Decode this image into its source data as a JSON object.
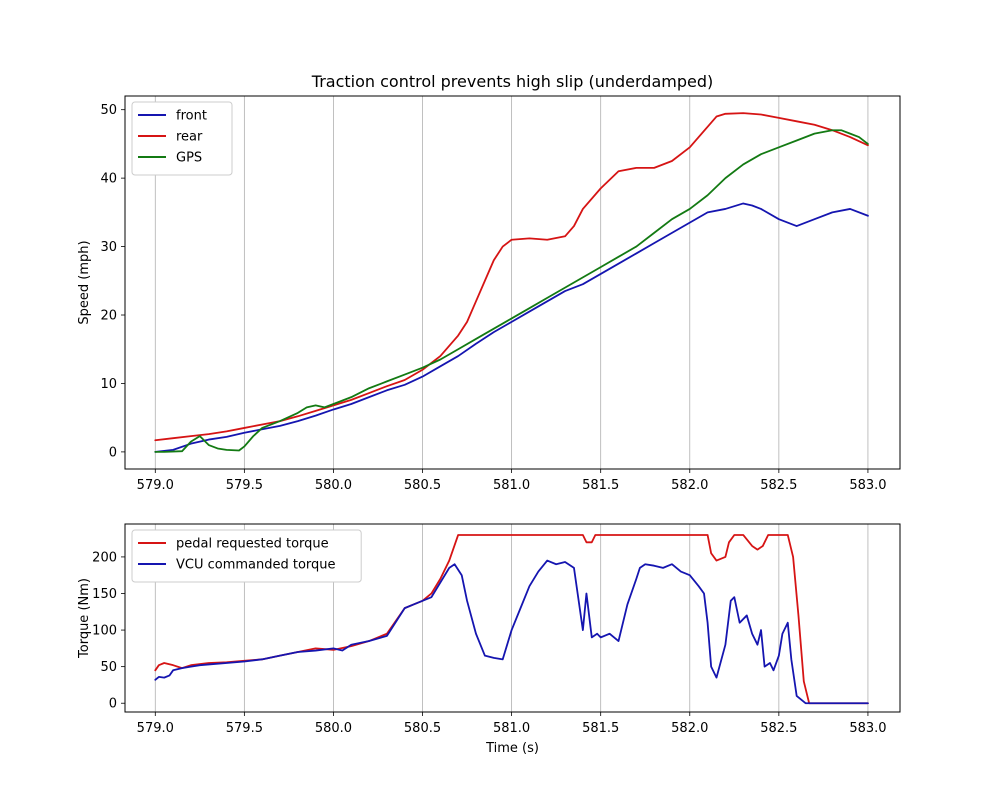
{
  "chart_data": [
    {
      "type": "line",
      "title": "Traction control prevents high slip (underdamped)",
      "xlabel": "",
      "ylabel": "Speed (mph)",
      "xlim": [
        578.83,
        583.18
      ],
      "ylim": [
        -2.5,
        52
      ],
      "xticks": [
        579.0,
        579.5,
        580.0,
        580.5,
        581.0,
        581.5,
        582.0,
        582.5,
        583.0
      ],
      "xtick_labels": [
        "579.0",
        "579.5",
        "580.0",
        "580.5",
        "581.0",
        "581.5",
        "582.0",
        "582.5",
        "583.0"
      ],
      "yticks": [
        0,
        10,
        20,
        30,
        40,
        50
      ],
      "ytick_labels": [
        "0",
        "10",
        "20",
        "30",
        "40",
        "50"
      ],
      "grid": "x",
      "legend": "upper-left",
      "series": [
        {
          "name": "front",
          "color": "#1515b0",
          "x": [
            579.0,
            579.1,
            579.2,
            579.3,
            579.4,
            579.5,
            579.6,
            579.7,
            579.8,
            579.9,
            580.0,
            580.1,
            580.2,
            580.3,
            580.4,
            580.5,
            580.6,
            580.7,
            580.8,
            580.9,
            581.0,
            581.1,
            581.2,
            581.3,
            581.4,
            581.5,
            581.6,
            581.7,
            581.8,
            581.9,
            582.0,
            582.1,
            582.2,
            582.3,
            582.35,
            582.4,
            582.5,
            582.6,
            582.7,
            582.8,
            582.9,
            583.0
          ],
          "values": [
            0,
            0.3,
            1.2,
            1.8,
            2.2,
            2.8,
            3.3,
            3.8,
            4.5,
            5.3,
            6.2,
            7.0,
            8.0,
            9.0,
            9.8,
            11.0,
            12.5,
            14.0,
            15.8,
            17.5,
            19.0,
            20.5,
            22.0,
            23.5,
            24.5,
            26.0,
            27.5,
            29.0,
            30.5,
            32.0,
            33.5,
            35.0,
            35.5,
            36.3,
            36.0,
            35.5,
            34.0,
            33.0,
            34.0,
            35.0,
            35.5,
            34.5
          ]
        },
        {
          "name": "rear",
          "color": "#d61414",
          "x": [
            579.0,
            579.1,
            579.2,
            579.3,
            579.4,
            579.5,
            579.6,
            579.7,
            579.8,
            579.9,
            580.0,
            580.1,
            580.2,
            580.3,
            580.4,
            580.5,
            580.6,
            580.7,
            580.75,
            580.8,
            580.85,
            580.9,
            580.95,
            581.0,
            581.1,
            581.2,
            581.3,
            581.35,
            581.4,
            581.5,
            581.6,
            581.7,
            581.8,
            581.9,
            582.0,
            582.1,
            582.15,
            582.2,
            582.3,
            582.4,
            582.5,
            582.6,
            582.7,
            582.8,
            582.9,
            583.0
          ],
          "values": [
            1.7,
            2.0,
            2.3,
            2.6,
            3.0,
            3.5,
            4.0,
            4.5,
            5.2,
            6.0,
            6.8,
            7.6,
            8.6,
            9.6,
            10.5,
            12.0,
            14.0,
            17.0,
            19.0,
            22.0,
            25.0,
            28.0,
            30.0,
            31.0,
            31.2,
            31.0,
            31.5,
            33.0,
            35.5,
            38.5,
            41.0,
            41.5,
            41.5,
            42.5,
            44.5,
            47.5,
            49.0,
            49.4,
            49.5,
            49.3,
            48.8,
            48.3,
            47.8,
            47.0,
            46.0,
            44.8
          ]
        },
        {
          "name": "GPS",
          "color": "#137a13",
          "x": [
            579.0,
            579.05,
            579.15,
            579.2,
            579.25,
            579.3,
            579.35,
            579.4,
            579.47,
            579.5,
            579.55,
            579.6,
            579.7,
            579.8,
            579.85,
            579.9,
            579.95,
            580.0,
            580.1,
            580.2,
            580.3,
            580.4,
            580.5,
            580.6,
            580.7,
            580.8,
            580.9,
            581.0,
            581.1,
            581.2,
            581.3,
            581.4,
            581.5,
            581.6,
            581.7,
            581.8,
            581.9,
            582.0,
            582.1,
            582.2,
            582.3,
            582.4,
            582.5,
            582.6,
            582.7,
            582.8,
            582.85,
            582.9,
            582.95,
            583.0
          ],
          "values": [
            0,
            0,
            0.1,
            1.5,
            2.3,
            1.0,
            0.5,
            0.3,
            0.2,
            0.8,
            2.3,
            3.5,
            4.5,
            5.7,
            6.5,
            6.8,
            6.5,
            7.0,
            8.0,
            9.3,
            10.3,
            11.3,
            12.3,
            13.5,
            15.0,
            16.5,
            18.0,
            19.5,
            21.0,
            22.5,
            24.0,
            25.5,
            27.0,
            28.5,
            30.0,
            32.0,
            34.0,
            35.5,
            37.5,
            40.0,
            42.0,
            43.5,
            44.5,
            45.5,
            46.5,
            47.0,
            47.0,
            46.5,
            46.0,
            45.0
          ]
        }
      ]
    },
    {
      "type": "line",
      "title": "",
      "xlabel": "Time (s)",
      "ylabel": "Torque (Nm)",
      "xlim": [
        578.83,
        583.18
      ],
      "ylim": [
        -12,
        245
      ],
      "xticks": [
        579.0,
        579.5,
        580.0,
        580.5,
        581.0,
        581.5,
        582.0,
        582.5,
        583.0
      ],
      "xtick_labels": [
        "579.0",
        "579.5",
        "580.0",
        "580.5",
        "581.0",
        "581.5",
        "582.0",
        "582.5",
        "583.0"
      ],
      "yticks": [
        0,
        50,
        100,
        150,
        200
      ],
      "ytick_labels": [
        "0",
        "50",
        "100",
        "150",
        "200"
      ],
      "grid": "x",
      "legend": "upper-left",
      "series": [
        {
          "name": "pedal requested torque",
          "color": "#d61414",
          "x": [
            579.0,
            579.02,
            579.05,
            579.1,
            579.15,
            579.2,
            579.3,
            579.4,
            579.5,
            579.6,
            579.7,
            579.8,
            579.9,
            580.0,
            580.1,
            580.2,
            580.3,
            580.4,
            580.45,
            580.5,
            580.55,
            580.6,
            580.65,
            580.7,
            581.4,
            581.42,
            581.45,
            581.47,
            582.1,
            582.12,
            582.15,
            582.2,
            582.22,
            582.25,
            582.3,
            582.35,
            582.38,
            582.41,
            582.44,
            582.55,
            582.58,
            582.61,
            582.64,
            582.67,
            583.0
          ],
          "values": [
            45,
            52,
            55,
            52,
            48,
            52,
            55,
            56,
            58,
            60,
            65,
            70,
            75,
            73,
            78,
            85,
            95,
            130,
            135,
            140,
            150,
            170,
            195,
            230,
            230,
            220,
            220,
            230,
            230,
            205,
            195,
            200,
            220,
            230,
            230,
            215,
            210,
            215,
            230,
            230,
            200,
            120,
            30,
            0,
            0
          ]
        },
        {
          "name": "VCU commanded torque",
          "color": "#1515b0",
          "x": [
            579.0,
            579.02,
            579.05,
            579.08,
            579.1,
            579.15,
            579.2,
            579.25,
            579.3,
            579.4,
            579.5,
            579.6,
            579.7,
            579.8,
            579.9,
            580.0,
            580.05,
            580.1,
            580.2,
            580.3,
            580.4,
            580.45,
            580.5,
            580.55,
            580.6,
            580.65,
            580.68,
            580.72,
            580.75,
            580.8,
            580.85,
            580.9,
            580.95,
            581.0,
            581.05,
            581.1,
            581.15,
            581.2,
            581.25,
            581.3,
            581.35,
            581.4,
            581.42,
            581.45,
            581.48,
            581.5,
            581.55,
            581.6,
            581.65,
            581.7,
            581.72,
            581.75,
            581.8,
            581.85,
            581.9,
            581.95,
            582.0,
            582.05,
            582.08,
            582.1,
            582.12,
            582.15,
            582.2,
            582.23,
            582.25,
            582.28,
            582.32,
            582.35,
            582.38,
            582.4,
            582.42,
            582.45,
            582.47,
            582.5,
            582.52,
            582.55,
            582.57,
            582.6,
            582.65,
            583.0
          ],
          "values": [
            32,
            36,
            35,
            38,
            45,
            48,
            50,
            52,
            53,
            55,
            57,
            60,
            65,
            70,
            72,
            75,
            72,
            80,
            85,
            92,
            130,
            135,
            140,
            145,
            165,
            185,
            190,
            175,
            140,
            95,
            65,
            62,
            60,
            100,
            130,
            160,
            180,
            195,
            190,
            193,
            185,
            100,
            150,
            90,
            95,
            90,
            95,
            85,
            135,
            170,
            185,
            190,
            188,
            185,
            190,
            180,
            175,
            160,
            150,
            110,
            50,
            35,
            80,
            140,
            145,
            110,
            120,
            95,
            80,
            100,
            50,
            55,
            45,
            65,
            95,
            110,
            60,
            10,
            0,
            0
          ]
        }
      ]
    }
  ]
}
